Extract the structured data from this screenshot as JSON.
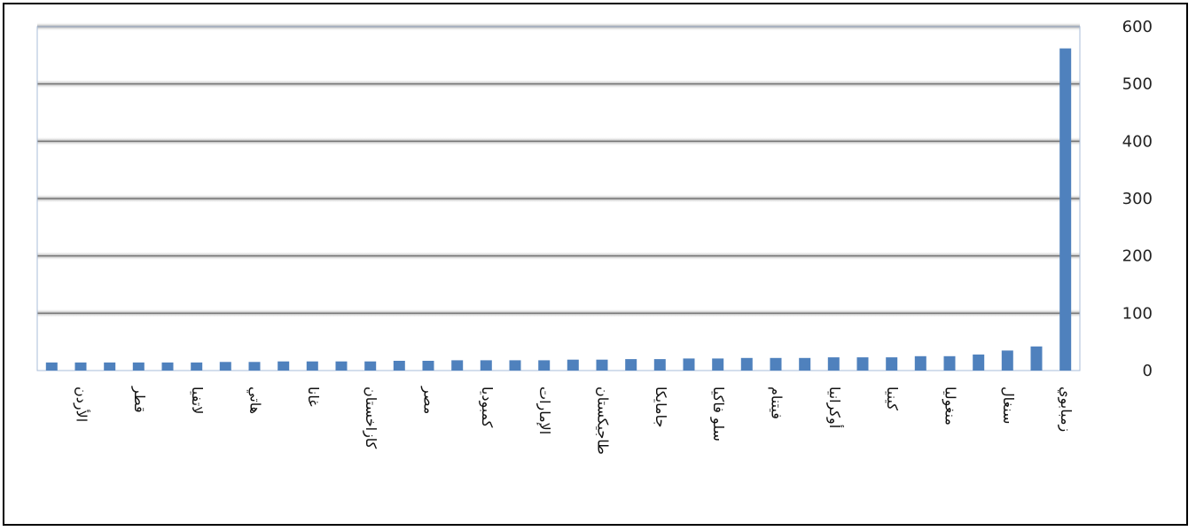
{
  "chart_data": {
    "type": "bar",
    "title": "",
    "xlabel": "",
    "ylabel": "",
    "ylim": [
      0,
      600
    ],
    "yticks": [
      0,
      100,
      200,
      300,
      400,
      500,
      600
    ],
    "grid": true,
    "legend": "none",
    "bar_color": "#4F81BD",
    "categories": [
      "",
      "الأردن",
      "",
      "قطر",
      "",
      "لاتفيا",
      "",
      "هاتي",
      "",
      "غانا",
      "",
      "كازاخستان",
      "",
      "مصر",
      "",
      "كمبوديا",
      "",
      "الإمارات",
      "",
      "طاجيكستان",
      "",
      "جامايكا",
      "",
      "سلو فاكيا",
      "",
      "فيتنام",
      "",
      "أوكرانيا",
      "",
      "كينيا",
      "",
      "منغوليا",
      "",
      "سنغال",
      "",
      "زمبابوي"
    ],
    "values": [
      14,
      14,
      14,
      14,
      14,
      14,
      15,
      15,
      16,
      16,
      16,
      16,
      17,
      17,
      18,
      18,
      18,
      18,
      19,
      19,
      20,
      20,
      21,
      21,
      22,
      22,
      22,
      23,
      23,
      23,
      25,
      25,
      28,
      35,
      42,
      562
    ]
  }
}
